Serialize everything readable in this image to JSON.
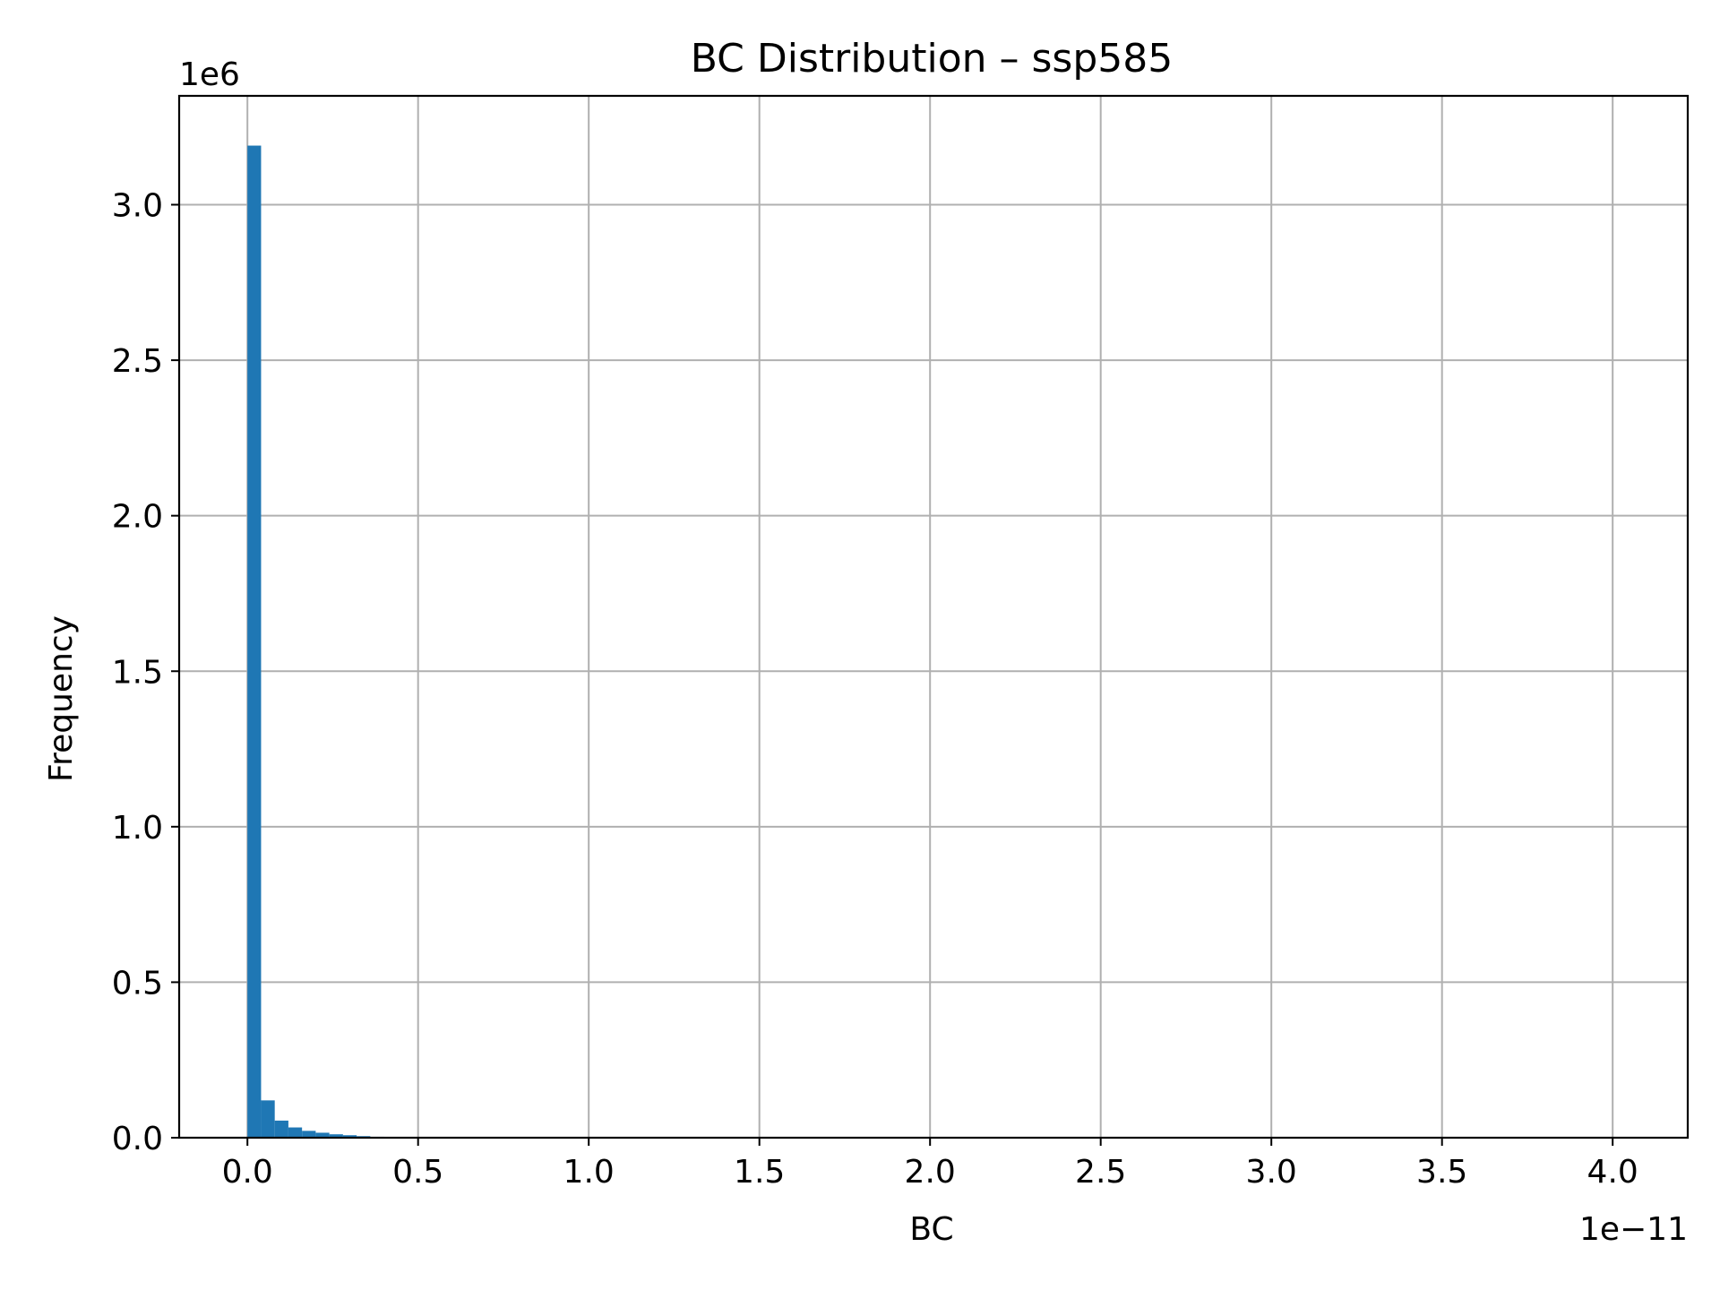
{
  "chart_data": {
    "type": "bar",
    "title": "BC Distribution – ssp585",
    "xlabel": "BC",
    "ylabel": "Frequency",
    "x_offset_label": "1e−11",
    "y_offset_label": "1e6",
    "x_scale": 1e-11,
    "y_scale": 1000000,
    "xlim": [
      -0.2,
      4.22
    ],
    "ylim": [
      0,
      3.35
    ],
    "xticks": [
      0.0,
      0.5,
      1.0,
      1.5,
      2.0,
      2.5,
      3.0,
      3.5,
      4.0
    ],
    "xtick_labels": [
      "0.0",
      "0.5",
      "1.0",
      "1.5",
      "2.0",
      "2.5",
      "3.0",
      "3.5",
      "4.0"
    ],
    "yticks": [
      0.0,
      0.5,
      1.0,
      1.5,
      2.0,
      2.5,
      3.0
    ],
    "ytick_labels": [
      "0.0",
      "0.5",
      "1.0",
      "1.5",
      "2.0",
      "2.5",
      "3.0"
    ],
    "grid": true,
    "bar_color": "#1f77b4",
    "bins": [
      {
        "x0": 0.0,
        "x1": 0.04,
        "value": 3.19
      },
      {
        "x0": 0.04,
        "x1": 0.08,
        "value": 0.12
      },
      {
        "x0": 0.08,
        "x1": 0.12,
        "value": 0.055
      },
      {
        "x0": 0.12,
        "x1": 0.16,
        "value": 0.033
      },
      {
        "x0": 0.16,
        "x1": 0.2,
        "value": 0.022
      },
      {
        "x0": 0.2,
        "x1": 0.24,
        "value": 0.016
      },
      {
        "x0": 0.24,
        "x1": 0.28,
        "value": 0.011
      },
      {
        "x0": 0.28,
        "x1": 0.32,
        "value": 0.008
      },
      {
        "x0": 0.32,
        "x1": 0.36,
        "value": 0.005
      },
      {
        "x0": 0.36,
        "x1": 0.4,
        "value": 0.003
      },
      {
        "x0": 0.4,
        "x1": 0.44,
        "value": 0.002
      },
      {
        "x0": 0.44,
        "x1": 0.48,
        "value": 0.001
      }
    ]
  }
}
